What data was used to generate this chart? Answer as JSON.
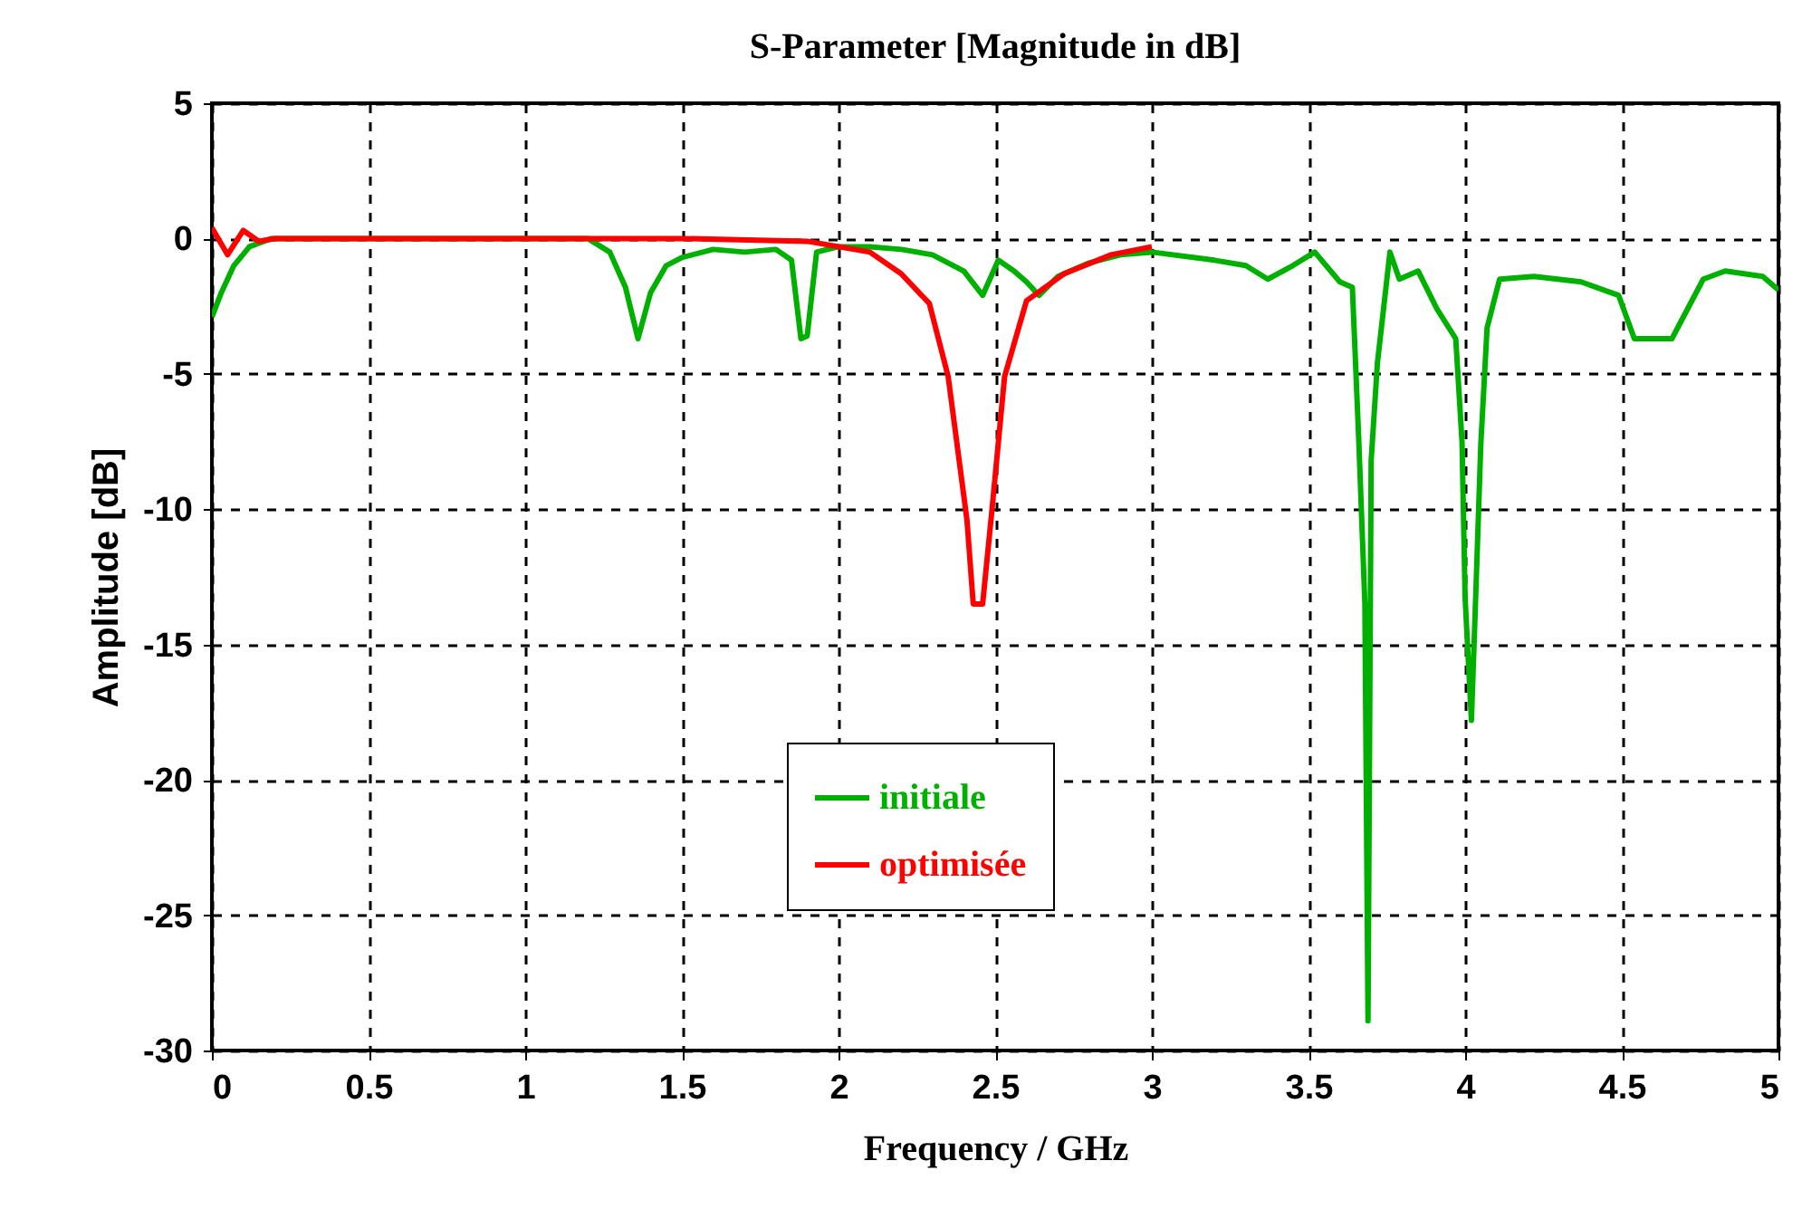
{
  "chart_data": {
    "type": "line",
    "title": "S-Parameter [Magnitude in dB]",
    "xlabel": "Frequency / GHz",
    "ylabel": "Amplitude [dB]",
    "xlim": [
      0,
      5
    ],
    "xticks": [
      0,
      0.5,
      1,
      1.5,
      2,
      2.5,
      3,
      3.5,
      4,
      4.5,
      5
    ],
    "ylim": [
      -30,
      5
    ],
    "yticks": [
      5,
      0,
      -5,
      -10,
      -15,
      -20,
      -25,
      -30
    ],
    "grid": true,
    "legend": "bottom",
    "line_style": "solid",
    "series": [
      {
        "name": "initiale",
        "color": "#00b000",
        "x": [
          0,
          0.03,
          0.07,
          0.12,
          0.19,
          0.3,
          0.6,
          1.0,
          1.2,
          1.27,
          1.32,
          1.36,
          1.4,
          1.45,
          1.5,
          1.6,
          1.7,
          1.8,
          1.85,
          1.88,
          1.9,
          1.93,
          2.0,
          2.1,
          2.2,
          2.3,
          2.4,
          2.46,
          2.51,
          2.56,
          2.6,
          2.64,
          2.7,
          2.8,
          2.9,
          3.0,
          3.2,
          3.3,
          3.37,
          3.45,
          3.52,
          3.6,
          3.64,
          3.66,
          3.68,
          3.69,
          3.7,
          3.72,
          3.76,
          3.79,
          3.85,
          3.91,
          3.97,
          3.99,
          4.0,
          4.02,
          4.03,
          4.05,
          4.07,
          4.11,
          4.22,
          4.37,
          4.49,
          4.54,
          4.66,
          4.76,
          4.83,
          4.95,
          5.0
        ],
        "values": [
          -2.9,
          -2.0,
          -1.0,
          -0.3,
          0,
          0,
          0,
          0,
          0,
          -0.5,
          -1.8,
          -3.7,
          -2.0,
          -1.0,
          -0.7,
          -0.4,
          -0.5,
          -0.4,
          -0.8,
          -3.7,
          -3.6,
          -0.5,
          -0.3,
          -0.3,
          -0.4,
          -0.6,
          -1.2,
          -2.1,
          -0.8,
          -1.2,
          -1.6,
          -2.1,
          -1.4,
          -0.9,
          -0.6,
          -0.5,
          -0.8,
          -1.0,
          -1.5,
          -1.0,
          -0.5,
          -1.6,
          -1.8,
          -7.3,
          -13.5,
          -28.9,
          -8.2,
          -4.6,
          -0.5,
          -1.5,
          -1.2,
          -2.6,
          -3.7,
          -7.5,
          -13.3,
          -17.8,
          -14.5,
          -7.6,
          -3.3,
          -1.5,
          -1.4,
          -1.6,
          -2.1,
          -3.7,
          -3.7,
          -1.5,
          -1.2,
          -1.4,
          -1.9
        ]
      },
      {
        "name": "optimisée",
        "color": "#ff0000",
        "x": [
          0,
          0.05,
          0.1,
          0.15,
          0.2,
          0.5,
          1.0,
          1.5,
          1.9,
          2.1,
          2.2,
          2.29,
          2.35,
          2.41,
          2.43,
          2.46,
          2.49,
          2.53,
          2.6,
          2.72,
          2.87,
          3.0
        ],
        "values": [
          0.4,
          -0.6,
          0.3,
          -0.1,
          0,
          0,
          0,
          0,
          -0.1,
          -0.5,
          -1.3,
          -2.4,
          -5.1,
          -10.4,
          -13.5,
          -13.5,
          -10.0,
          -5.1,
          -2.3,
          -1.3,
          -0.6,
          -0.3
        ]
      }
    ]
  }
}
